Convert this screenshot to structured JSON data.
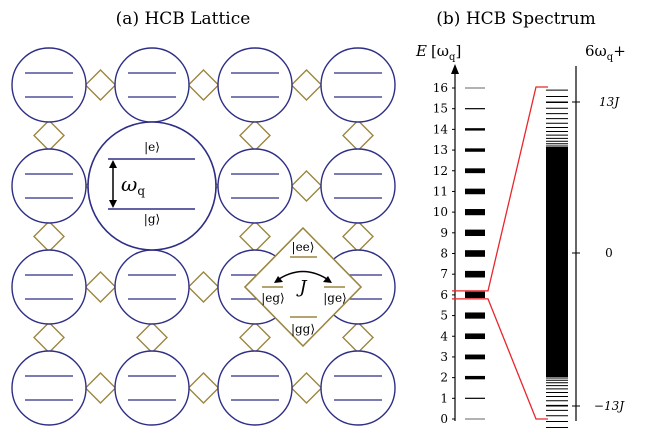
{
  "panel_a": {
    "title": "(a) HCB Lattice",
    "state_e": "|e⟩",
    "state_g": "|g⟩",
    "omega_label": "ω",
    "omega_sub": "q",
    "state_ee": "|ee⟩",
    "state_eg": "|eg⟩",
    "state_ge": "|ge⟩",
    "state_gg": "|gg⟩",
    "coupling": "J",
    "colors": {
      "site": "#2e2e86",
      "coupler": "#9b8640",
      "level": "#2e2e86"
    }
  },
  "panel_b": {
    "title": "(b) HCB Spectrum",
    "axis_label_left": "E",
    "axis_label_unit": "[ω",
    "axis_label_unit_sub": "q",
    "axis_label_close": "]",
    "axis_label_right": "6ω",
    "axis_label_right_sub": "q",
    "axis_label_right_plus": "+",
    "y_ticks": [
      "0",
      "1",
      "2",
      "3",
      "4",
      "5",
      "6",
      "7",
      "8",
      "9",
      "10",
      "11",
      "12",
      "13",
      "14",
      "15",
      "16"
    ],
    "zoom_ticks": [
      "13J",
      "0",
      "−13J"
    ],
    "colors": {
      "zoom": "#e8262b",
      "bars": "#000000"
    }
  }
}
